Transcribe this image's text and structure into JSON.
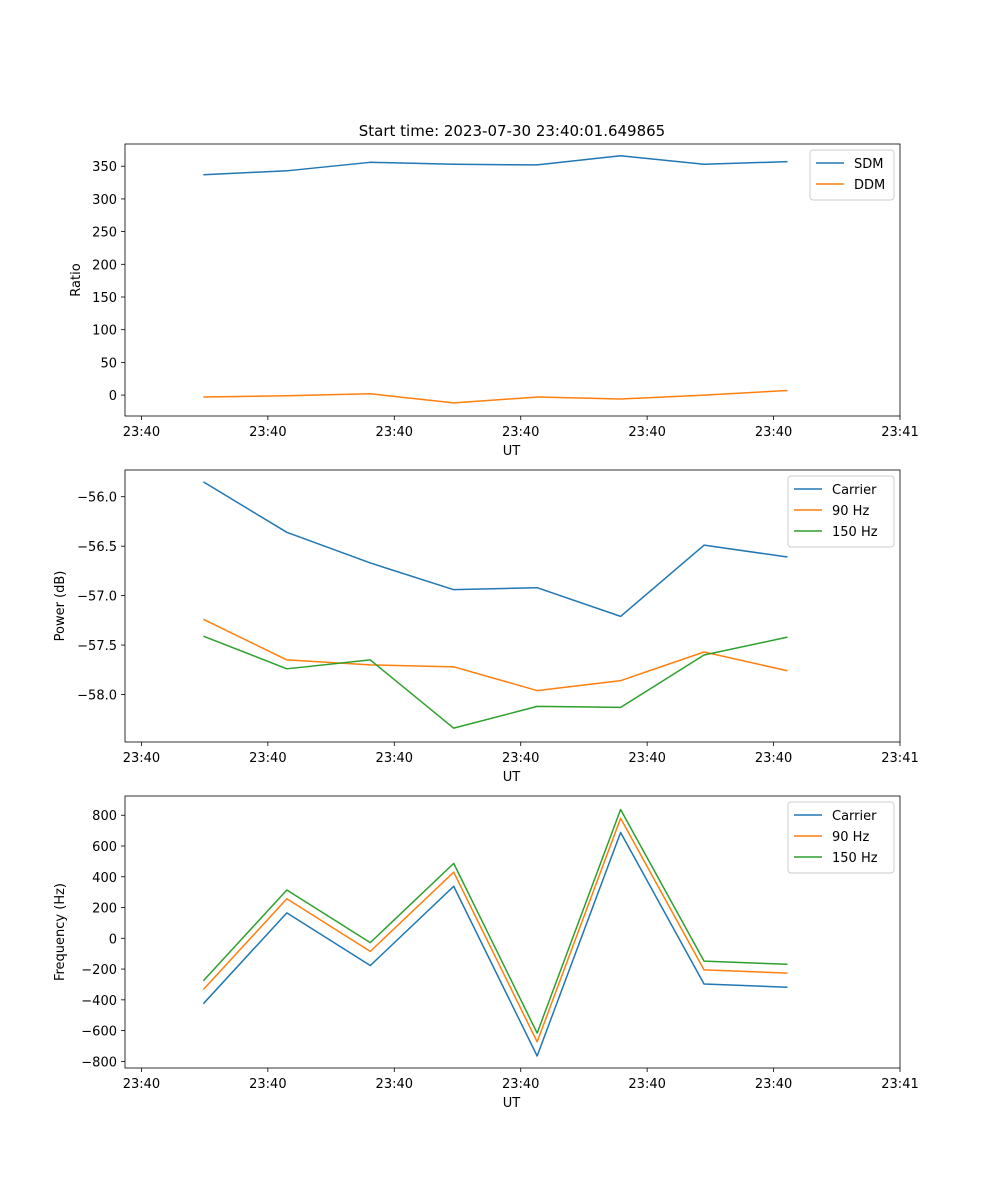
{
  "figure_title": "Start time: 2023-07-30 23:40:01.649865",
  "colors": {
    "blue": "#1f77b4",
    "orange": "#ff7f0e",
    "green": "#2ca02c"
  },
  "chart_data": [
    {
      "type": "line",
      "title": "Start time: 2023-07-30 23:40:01.649865",
      "xlabel": "UT",
      "ylabel": "Ratio",
      "x_tick_labels": [
        "23:40",
        "23:40",
        "23:40",
        "23:40",
        "23:40",
        "23:40",
        "23:41"
      ],
      "x_ticks": [
        0,
        1,
        2,
        3,
        4,
        5,
        6
      ],
      "xlim": [
        -0.13,
        6.0
      ],
      "ylim": [
        -32,
        384
      ],
      "y_ticks": [
        0,
        50,
        100,
        150,
        200,
        250,
        300,
        350
      ],
      "x": [
        0.49,
        1.15,
        1.81,
        2.47,
        3.13,
        3.79,
        4.45,
        5.11
      ],
      "series": [
        {
          "name": "SDM",
          "color": "#1f77b4",
          "values": [
            337,
            343,
            356,
            353,
            352,
            366,
            353,
            357
          ]
        },
        {
          "name": "DDM",
          "color": "#ff7f0e",
          "values": [
            -3,
            -1,
            2,
            -12,
            -3,
            -6,
            0,
            7
          ]
        }
      ],
      "legend": "top-right"
    },
    {
      "type": "line",
      "title": "",
      "xlabel": "UT",
      "ylabel": "Power (dB)",
      "x_tick_labels": [
        "23:40",
        "23:40",
        "23:40",
        "23:40",
        "23:40",
        "23:40",
        "23:41"
      ],
      "x_ticks": [
        0,
        1,
        2,
        3,
        4,
        5,
        6
      ],
      "xlim": [
        -0.13,
        6.0
      ],
      "ylim": [
        -58.48,
        -55.73
      ],
      "y_ticks": [
        -58.0,
        -57.5,
        -57.0,
        -56.5,
        -56.0
      ],
      "y_tick_labels": [
        "−58.0",
        "−57.5",
        "−57.0",
        "−56.5",
        "−56.0"
      ],
      "x": [
        0.49,
        1.15,
        1.81,
        2.47,
        3.13,
        3.79,
        4.45,
        5.11
      ],
      "series": [
        {
          "name": "Carrier",
          "color": "#1f77b4",
          "values": [
            -55.85,
            -56.36,
            -56.67,
            -56.94,
            -56.92,
            -57.21,
            -56.49,
            -56.61
          ]
        },
        {
          "name": "90 Hz",
          "color": "#ff7f0e",
          "values": [
            -57.24,
            -57.65,
            -57.7,
            -57.72,
            -57.96,
            -57.86,
            -57.57,
            -57.76
          ]
        },
        {
          "name": "150 Hz",
          "color": "#2ca02c",
          "values": [
            -57.41,
            -57.74,
            -57.65,
            -58.34,
            -58.12,
            -58.13,
            -57.6,
            -57.42
          ]
        }
      ],
      "legend": "top-right"
    },
    {
      "type": "line",
      "title": "",
      "xlabel": "UT",
      "ylabel": "Frequency (Hz)",
      "x_tick_labels": [
        "23:40",
        "23:40",
        "23:40",
        "23:40",
        "23:40",
        "23:40",
        "23:41"
      ],
      "x_ticks": [
        0,
        1,
        2,
        3,
        4,
        5,
        6
      ],
      "xlim": [
        -0.13,
        6.0
      ],
      "ylim": [
        -843,
        925
      ],
      "y_ticks": [
        -800,
        -600,
        -400,
        -200,
        0,
        200,
        400,
        600,
        800
      ],
      "y_tick_labels": [
        "−800",
        "−600",
        "−400",
        "−200",
        "0",
        "200",
        "400",
        "600",
        "800"
      ],
      "x": [
        0.49,
        1.15,
        1.81,
        2.47,
        3.13,
        3.79,
        4.45,
        5.11
      ],
      "series": [
        {
          "name": "Carrier",
          "color": "#1f77b4",
          "values": [
            -425,
            165,
            -177,
            338,
            -765,
            688,
            -297,
            -318
          ]
        },
        {
          "name": "90 Hz",
          "color": "#ff7f0e",
          "values": [
            -333,
            257,
            -85,
            430,
            -673,
            780,
            -205,
            -226
          ]
        },
        {
          "name": "150 Hz",
          "color": "#2ca02c",
          "values": [
            -276,
            314,
            -28,
            487,
            -616,
            837,
            -148,
            -169
          ]
        }
      ],
      "legend": "top-right"
    }
  ]
}
